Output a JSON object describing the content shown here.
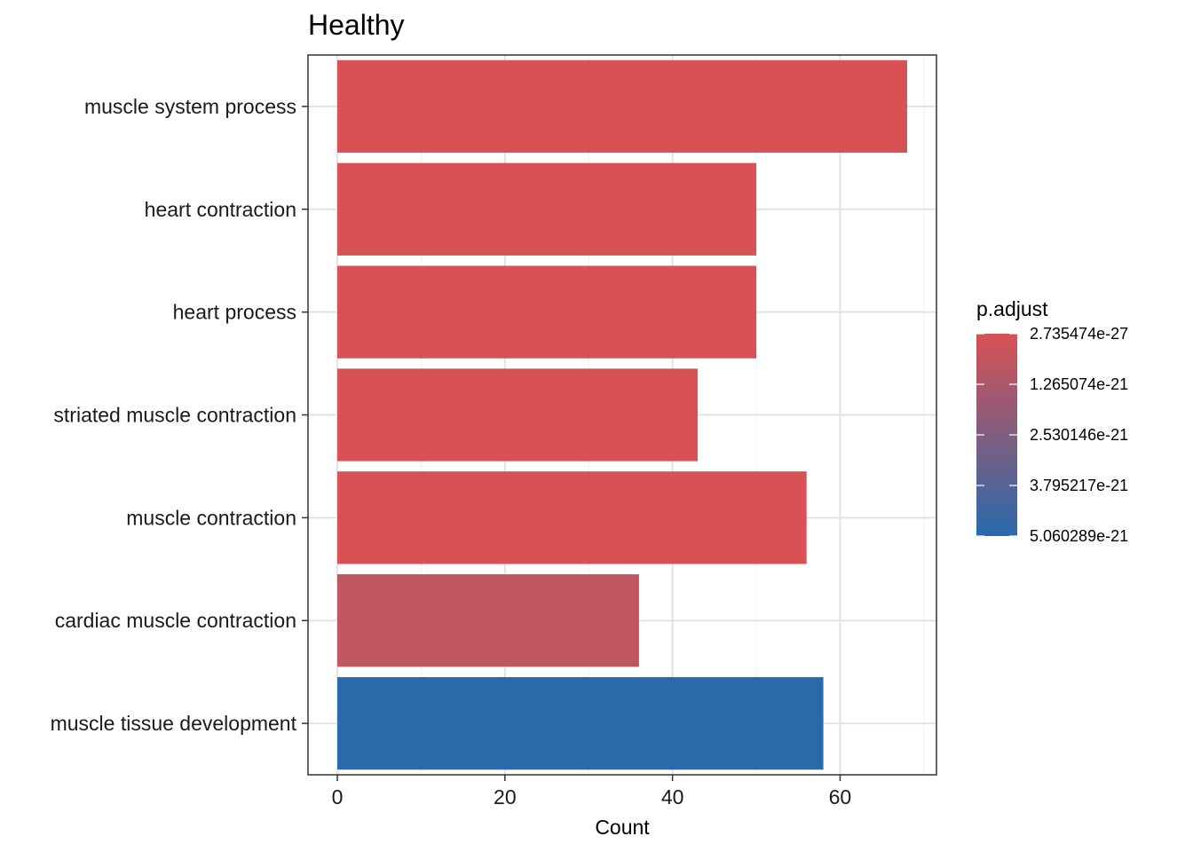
{
  "chart_data": {
    "type": "bar",
    "orientation": "horizontal",
    "title": "Healthy",
    "xlabel": "Count",
    "ylabel": "",
    "xlim": [
      -3.5,
      71.5
    ],
    "x_ticks": [
      0,
      20,
      40,
      60
    ],
    "x_tick_labels": [
      "0",
      "20",
      "40",
      "60"
    ],
    "grid": true,
    "categories": [
      "muscle system process",
      "heart contraction",
      "heart process",
      "striated muscle contraction",
      "muscle contraction",
      "cardiac muscle contraction",
      "muscle tissue development"
    ],
    "values": [
      68,
      50,
      50,
      43,
      56,
      36,
      58
    ],
    "p_adjust": [
      2.735474e-27,
      1e-25,
      1e-25,
      5e-24,
      1e-24,
      1e-21,
      5.060289e-21
    ],
    "colors": [
      "#D75155",
      "#D75155",
      "#D75155",
      "#D75155",
      "#D75155",
      "#BF5660",
      "#2A6AAB"
    ],
    "legend": {
      "title": "p.adjust",
      "position": "right",
      "color_low": "#D75155",
      "color_high": "#2A6AAB",
      "labels": [
        "2.735474e-27",
        "1.265074e-21",
        "2.530146e-21",
        "3.795217e-21",
        "5.060289e-21"
      ],
      "values": [
        2.735474e-27,
        1.265074e-21,
        2.530146e-21,
        3.795217e-21,
        5.060289e-21
      ]
    }
  }
}
